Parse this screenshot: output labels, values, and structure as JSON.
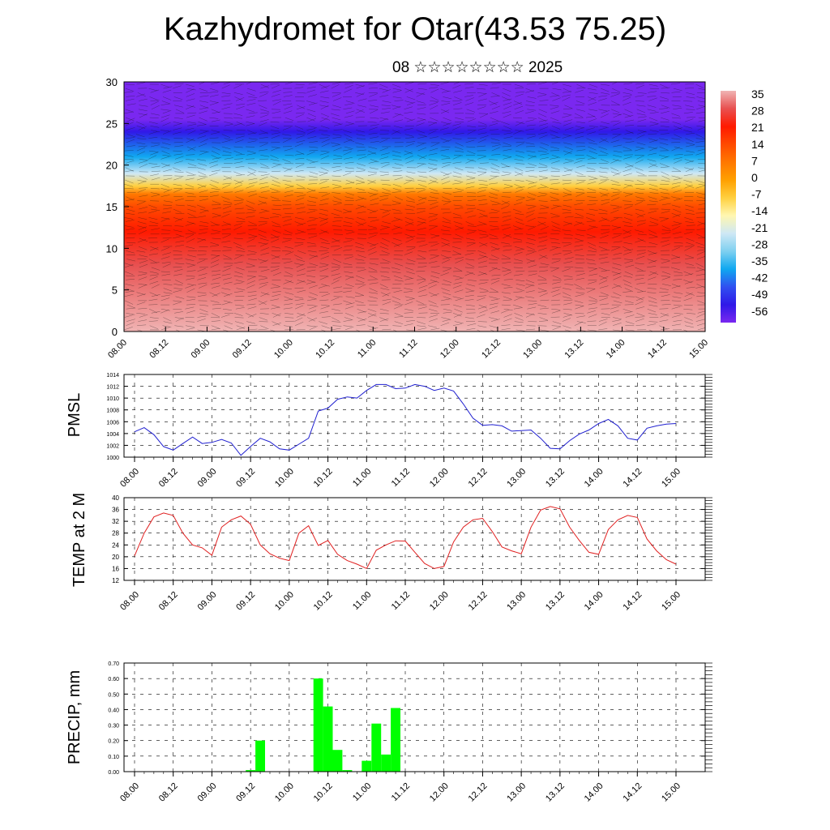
{
  "header": {
    "title": "Kazhydromet for Otar(43.53 75.25)",
    "subtitle": "08 ☆☆☆☆☆☆☆☆ 2025"
  },
  "time_ticks": [
    "08.00",
    "08.12",
    "09.00",
    "09.12",
    "10.00",
    "10.12",
    "11.00",
    "11.12",
    "12.00",
    "12.12",
    "13.00",
    "13.12",
    "14.00",
    "14.12",
    "15.00"
  ],
  "chart_data": [
    {
      "type": "heatmap",
      "ylim": [
        0,
        30
      ],
      "yticks": [
        0,
        5,
        10,
        15,
        20,
        25,
        30
      ],
      "colorbar": {
        "labels": [
          "35",
          "28",
          "21",
          "14",
          "7",
          "0",
          "-7",
          "-14",
          "-21",
          "-28",
          "-35",
          "-42",
          "-49",
          "-56"
        ],
        "colors": [
          "#f0b4b4",
          "#e85050",
          "#ff1a00",
          "#ff4a00",
          "#ff7800",
          "#ffa000",
          "#ffd040",
          "#fff7b0",
          "#cfe8f5",
          "#7fd0f0",
          "#10a8f0",
          "#3050f0",
          "#3018e8",
          "#7a28f0"
        ]
      },
      "temperature_profile": {
        "height": [
          0,
          8,
          12,
          15,
          16.5,
          17.5,
          19,
          21,
          24,
          25.5,
          27,
          30
        ],
        "value": [
          35,
          28,
          21,
          14,
          7,
          -7,
          -21,
          -35,
          -49,
          -56,
          -56,
          -56
        ]
      }
    },
    {
      "type": "line",
      "ylabel": "PMSL",
      "ylim": [
        1000,
        1014
      ],
      "yticks": [
        "1000",
        "1002",
        "1004",
        "1006",
        "1008",
        "1010",
        "1012",
        "1014"
      ],
      "color": "#2020d0",
      "series": [
        {
          "values": [
            1004.3,
            1005,
            1003.8,
            1001.8,
            1001.2,
            1002.3,
            1003.4,
            1002.3,
            1002.5,
            1003,
            1002.4,
            1000.3,
            1001.8,
            1003.2,
            1002.6,
            1001.4,
            1001.2,
            1002.2,
            1003.2,
            1007.8,
            1008.3,
            1009.8,
            1010.2,
            1010,
            1011.3,
            1012.3,
            1012.3,
            1011.6,
            1011.7,
            1012.3,
            1012,
            1011.3,
            1011.7,
            1011.2,
            1009,
            1006.6,
            1005.4,
            1005.5,
            1005.3,
            1004.4,
            1004.5,
            1004.6,
            1003.2,
            1001.5,
            1001.4,
            1002.8,
            1003.9,
            1004.6,
            1005.7,
            1006.4,
            1005.3,
            1003.2,
            1002.9,
            1004.9,
            1005.3,
            1005.6,
            1005.7
          ]
        }
      ]
    },
    {
      "type": "line",
      "ylabel": "TEMP at 2 M",
      "ylim": [
        12,
        40
      ],
      "yticks": [
        "12",
        "16",
        "20",
        "24",
        "28",
        "32",
        "36",
        "40"
      ],
      "color": "#e02020",
      "series": [
        {
          "values": [
            20.3,
            28,
            33.5,
            34.8,
            34,
            28,
            24,
            23,
            20.5,
            30,
            32.5,
            33.8,
            31,
            24,
            21,
            19.5,
            18.7,
            28,
            30.5,
            23.8,
            25.5,
            20.8,
            18.7,
            17.5,
            16,
            22.2,
            24,
            25.4,
            25.3,
            21.5,
            17.7,
            16,
            16.7,
            25,
            30,
            32.5,
            33,
            28.5,
            23.3,
            22,
            21,
            30,
            35.8,
            37,
            36.2,
            30,
            25.5,
            21.5,
            20.8,
            29.2,
            32.5,
            34,
            33.3,
            26,
            22,
            19,
            17.5
          ]
        }
      ]
    },
    {
      "type": "bar",
      "ylabel": "PRECIP, mm",
      "ylim": [
        0,
        0.7
      ],
      "yticks": [
        "0.00",
        "0.10",
        "0.20",
        "0.30",
        "0.40",
        "0.50",
        "0.60",
        "0.70"
      ],
      "color": "#00ff00",
      "values": [
        0,
        0,
        0,
        0,
        0,
        0,
        0,
        0,
        0,
        0,
        0,
        0,
        0.01,
        0.2,
        0,
        0,
        0,
        0,
        0,
        0.6,
        0.42,
        0.14,
        0.01,
        0,
        0.07,
        0.31,
        0.11,
        0.41,
        0,
        0,
        0,
        0,
        0,
        0,
        0,
        0,
        0,
        0,
        0,
        0,
        0,
        0,
        0,
        0,
        0,
        0,
        0,
        0,
        0,
        0,
        0,
        0,
        0,
        0,
        0,
        0,
        0
      ]
    }
  ]
}
